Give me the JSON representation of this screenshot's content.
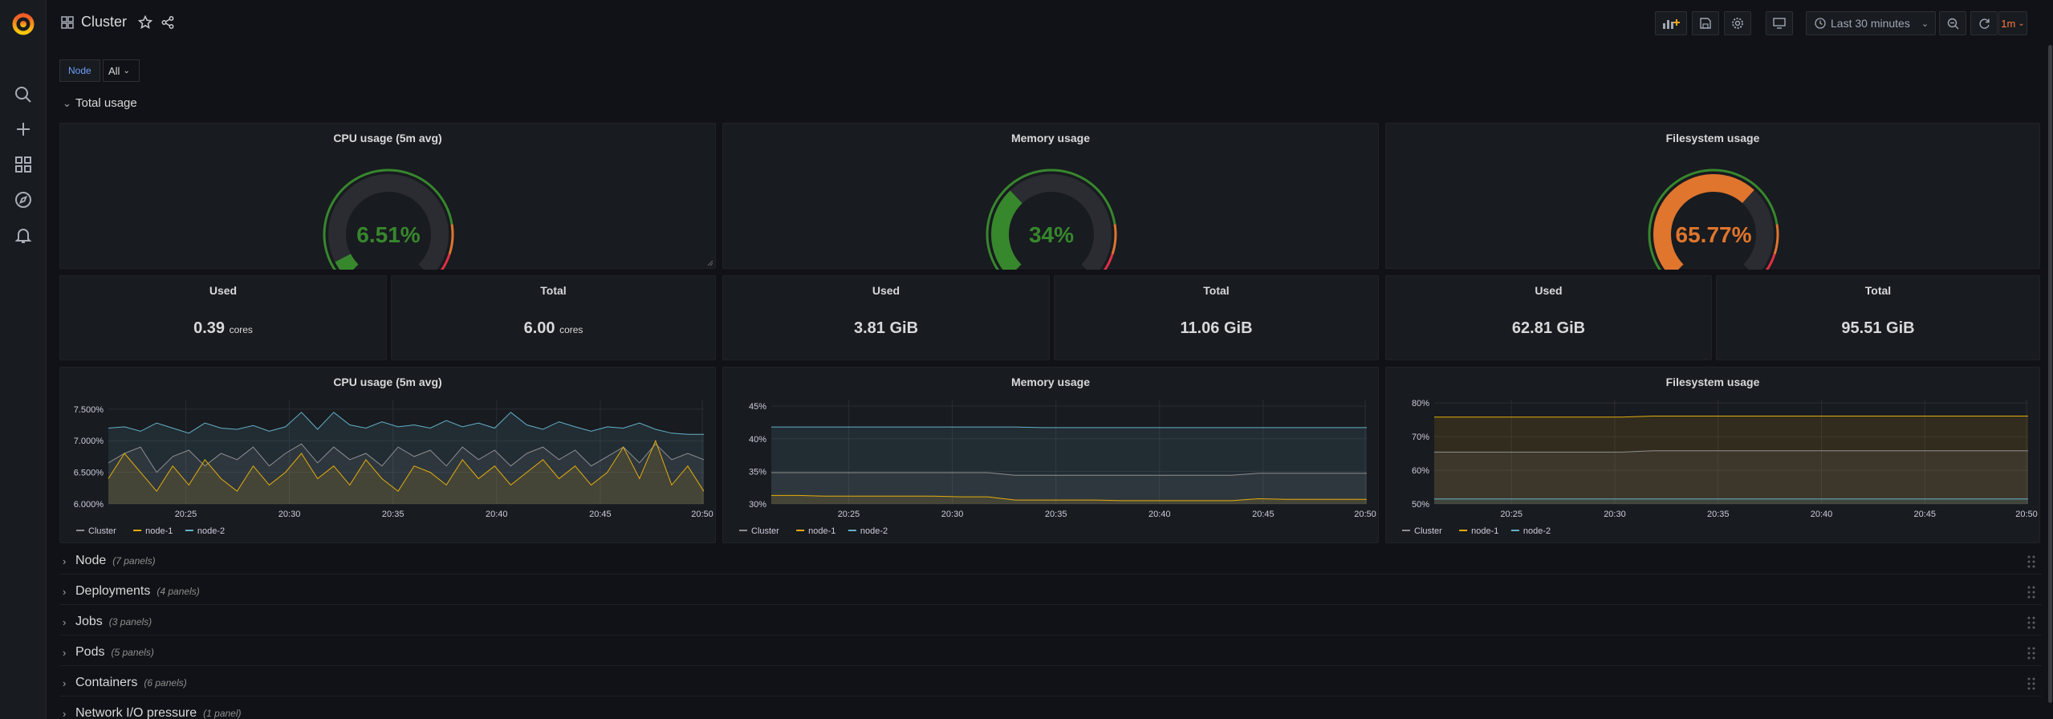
{
  "topbar": {
    "title": "Cluster",
    "time_range": "Last 30 minutes",
    "refresh": "1m"
  },
  "variables": {
    "node_label": "Node",
    "node_value": "All"
  },
  "total_usage_row": {
    "title": "Total usage"
  },
  "gauges": [
    {
      "title": "CPU usage (5m avg)",
      "value": 6.51,
      "display": "6.51%",
      "color": "#37872d"
    },
    {
      "title": "Memory usage",
      "value": 34,
      "display": "34%",
      "color": "#37872d"
    },
    {
      "title": "Filesystem usage",
      "value": 65.77,
      "display": "65.77%",
      "color": "#e0752d"
    }
  ],
  "gauge_colors": {
    "green": "#37872d",
    "orange": "#e0752d",
    "red": "#e02f44",
    "track": "#2a2c31"
  },
  "stats": [
    {
      "title": "Used",
      "value": "0.39",
      "unit": "cores"
    },
    {
      "title": "Total",
      "value": "6.00",
      "unit": "cores"
    },
    {
      "title": "Used",
      "value": "3.81 GiB",
      "unit": ""
    },
    {
      "title": "Total",
      "value": "11.06 GiB",
      "unit": ""
    },
    {
      "title": "Used",
      "value": "62.81 GiB",
      "unit": ""
    },
    {
      "title": "Total",
      "value": "95.51 GiB",
      "unit": ""
    }
  ],
  "series_colors": {
    "Cluster": "#8f8f8f",
    "node-1": "#e5ac0e",
    "node-2": "#64b0c8"
  },
  "chart_data": [
    {
      "type": "line",
      "title": "CPU usage (5m avg)",
      "x_ticks": [
        "20:25",
        "20:30",
        "20:35",
        "20:40",
        "20:45",
        "20:50"
      ],
      "y_ticks": [
        "6.000%",
        "6.500%",
        "7.000%",
        "7.500%"
      ],
      "ylim": [
        6.0,
        7.65
      ],
      "legend": [
        "Cluster",
        "node-1",
        "node-2"
      ],
      "series": [
        {
          "name": "node-2",
          "values": [
            7.2,
            7.22,
            7.15,
            7.28,
            7.2,
            7.12,
            7.28,
            7.2,
            7.18,
            7.24,
            7.15,
            7.22,
            7.45,
            7.18,
            7.45,
            7.25,
            7.2,
            7.3,
            7.22,
            7.25,
            7.2,
            7.32,
            7.22,
            7.28,
            7.2,
            7.45,
            7.25,
            7.18,
            7.3,
            7.22,
            7.15,
            7.22,
            7.2,
            7.28,
            7.18,
            7.12,
            7.1,
            7.1
          ]
        },
        {
          "name": "Cluster",
          "values": [
            6.65,
            6.8,
            6.9,
            6.5,
            6.75,
            6.85,
            6.6,
            6.8,
            6.7,
            6.9,
            6.6,
            6.8,
            6.95,
            6.65,
            6.9,
            6.7,
            6.8,
            6.6,
            6.9,
            6.75,
            6.85,
            6.6,
            6.9,
            6.7,
            6.85,
            6.6,
            6.8,
            6.9,
            6.7,
            6.85,
            6.6,
            6.75,
            6.9,
            6.65,
            6.95,
            6.7,
            6.8,
            6.7
          ]
        },
        {
          "name": "node-1",
          "values": [
            6.4,
            6.8,
            6.5,
            6.2,
            6.6,
            6.3,
            6.7,
            6.4,
            6.2,
            6.6,
            6.3,
            6.5,
            6.8,
            6.4,
            6.6,
            6.3,
            6.7,
            6.4,
            6.2,
            6.6,
            6.5,
            6.3,
            6.7,
            6.4,
            6.6,
            6.3,
            6.5,
            6.7,
            6.4,
            6.6,
            6.3,
            6.5,
            6.9,
            6.4,
            7.0,
            6.3,
            6.6,
            6.2
          ]
        }
      ]
    },
    {
      "type": "line",
      "title": "Memory usage",
      "x_ticks": [
        "20:25",
        "20:30",
        "20:35",
        "20:40",
        "20:45",
        "20:50"
      ],
      "y_ticks": [
        "30%",
        "35%",
        "40%",
        "45%"
      ],
      "ylim": [
        30,
        46
      ],
      "legend": [
        "Cluster",
        "node-1",
        "node-2"
      ],
      "series": [
        {
          "name": "node-2",
          "values": [
            41.8,
            41.8,
            41.8,
            41.8,
            41.8,
            41.8,
            41.8,
            41.8,
            41.8,
            41.8,
            41.7,
            41.7,
            41.7,
            41.7,
            41.7,
            41.7,
            41.7,
            41.7,
            41.7,
            41.7,
            41.7,
            41.7,
            41.7
          ]
        },
        {
          "name": "Cluster",
          "values": [
            34.8,
            34.8,
            34.8,
            34.8,
            34.8,
            34.8,
            34.8,
            34.8,
            34.8,
            34.4,
            34.4,
            34.4,
            34.4,
            34.4,
            34.4,
            34.4,
            34.4,
            34.4,
            34.7,
            34.7,
            34.7,
            34.7,
            34.7
          ]
        },
        {
          "name": "node-1",
          "values": [
            31.3,
            31.3,
            31.2,
            31.2,
            31.2,
            31.2,
            31.2,
            31.1,
            31.1,
            30.6,
            30.6,
            30.6,
            30.6,
            30.5,
            30.5,
            30.5,
            30.5,
            30.5,
            30.8,
            30.7,
            30.7,
            30.7,
            30.7
          ]
        }
      ]
    },
    {
      "type": "line",
      "title": "Filesystem usage",
      "x_ticks": [
        "20:25",
        "20:30",
        "20:35",
        "20:40",
        "20:45",
        "20:50"
      ],
      "y_ticks": [
        "50%",
        "60%",
        "70%",
        "80%"
      ],
      "ylim": [
        50,
        81
      ],
      "legend": [
        "Cluster",
        "node-1",
        "node-2"
      ],
      "series": [
        {
          "name": "node-1",
          "values": [
            75.8,
            75.8,
            75.8,
            75.8,
            75.8,
            75.8,
            75.8,
            76.1,
            76.1,
            76.1,
            76.1,
            76.1,
            76.1,
            76.1,
            76.1,
            76.1,
            76.1,
            76.1,
            76.1,
            76.1
          ]
        },
        {
          "name": "Cluster",
          "values": [
            65.4,
            65.4,
            65.4,
            65.4,
            65.4,
            65.4,
            65.4,
            65.8,
            65.8,
            65.8,
            65.8,
            65.8,
            65.8,
            65.8,
            65.8,
            65.8,
            65.8,
            65.8,
            65.8,
            65.8
          ]
        },
        {
          "name": "node-2",
          "values": [
            51.5,
            51.5,
            51.5,
            51.5,
            51.5,
            51.5,
            51.5,
            51.5,
            51.5,
            51.5,
            51.5,
            51.5,
            51.5,
            51.5,
            51.5,
            51.5,
            51.5,
            51.5,
            51.5,
            51.5
          ]
        }
      ]
    }
  ],
  "collapsed_rows": [
    {
      "title": "Node",
      "sub": "(7 panels)"
    },
    {
      "title": "Deployments",
      "sub": "(4 panels)"
    },
    {
      "title": "Jobs",
      "sub": "(3 panels)"
    },
    {
      "title": "Pods",
      "sub": "(5 panels)"
    },
    {
      "title": "Containers",
      "sub": "(6 panels)"
    },
    {
      "title": "Network I/O pressure",
      "sub": "(1 panel)"
    }
  ]
}
